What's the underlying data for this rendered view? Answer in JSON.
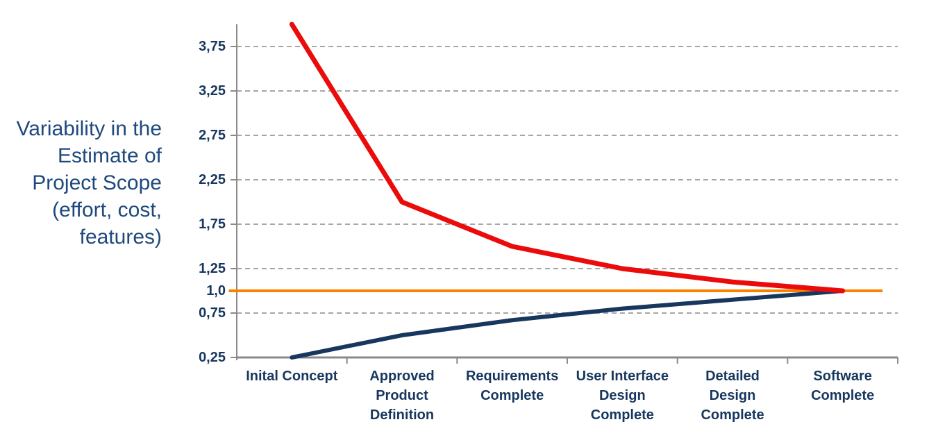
{
  "chart_data": {
    "type": "line",
    "title": "",
    "ylabel": "Variability in the Estimate of Project Scope (effort, cost, features)",
    "ylabel_lines": [
      "Variability in the",
      "Estimate of",
      "Project Scope",
      "(effort, cost,",
      "features)"
    ],
    "categories": [
      "Inital Concept",
      "Approved Product Definition",
      "Requirements Complete",
      "User Interface Design Complete",
      "Detailed Design Complete",
      "Software Complete"
    ],
    "category_label_lines": [
      [
        "Inital Concept"
      ],
      [
        "Approved",
        "Product",
        "Definition"
      ],
      [
        "Requirements",
        "Complete"
      ],
      [
        "User Interface",
        "Design",
        "Complete"
      ],
      [
        "Detailed",
        "Design",
        "Complete"
      ],
      [
        "Software",
        "Complete"
      ]
    ],
    "series": [
      {
        "name": "upper-estimate-bound",
        "color": "#EB0B0B",
        "stroke_width": 7,
        "values": [
          4.0,
          2.0,
          1.5,
          1.25,
          1.1,
          1.0
        ]
      },
      {
        "name": "lower-estimate-bound",
        "color": "#17375E",
        "stroke_width": 6,
        "values": [
          0.25,
          0.5,
          0.67,
          0.8,
          0.9,
          1.0
        ]
      }
    ],
    "baseline": {
      "name": "final-scope-baseline",
      "value": 1.0,
      "label": "1,0",
      "color": "#F98200",
      "stroke_width": 4,
      "x_extent": [
        -0.012,
        0.977
      ]
    },
    "y_ticks": [
      {
        "value": 3.75,
        "label": "3,75",
        "grid": true
      },
      {
        "value": 3.25,
        "label": "3,25",
        "grid": true
      },
      {
        "value": 2.75,
        "label": "2,75",
        "grid": true
      },
      {
        "value": 2.25,
        "label": "2,25",
        "grid": true
      },
      {
        "value": 1.75,
        "label": "1,75",
        "grid": true
      },
      {
        "value": 1.25,
        "label": "1,25",
        "grid": true
      },
      {
        "value": 1.0,
        "label": "1,0",
        "grid": false
      },
      {
        "value": 0.75,
        "label": "0,75",
        "grid": true
      },
      {
        "value": 0.25,
        "label": "0,25",
        "grid": false
      }
    ],
    "ylim": [
      0.25,
      4.0
    ],
    "grid": {
      "style": "dashed",
      "color": "#A6A6A6",
      "dash": "7 5"
    },
    "axis_color": "#8A8A8A",
    "label_color": "#17375E",
    "title_color": "#1F497D",
    "legend": "none"
  }
}
